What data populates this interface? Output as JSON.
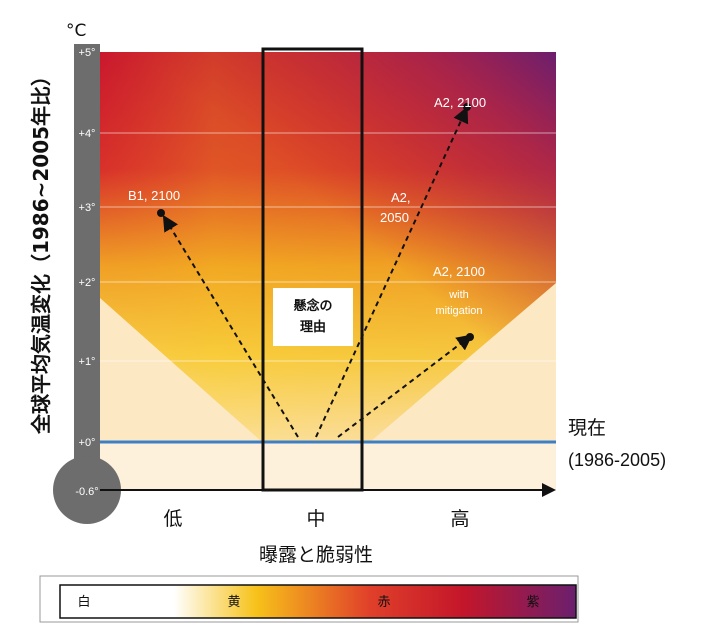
{
  "axis": {
    "unit": "°C",
    "ylabel": "全球平均気温変化（1986~2005年比）",
    "xlabel": "曝露と脆弱性",
    "y_ticks": [
      "+5°",
      "+4°",
      "+3°",
      "+2°",
      "+1°",
      "+0°",
      "-0.6°"
    ],
    "x_categories": [
      "低",
      "中",
      "高"
    ]
  },
  "baseline": {
    "label": "現在",
    "period": "(1986-2005)",
    "color": "#3d7fc4"
  },
  "box_label": {
    "line1": "懸念の",
    "line2": "理由"
  },
  "scenarios": {
    "b1_2100": "B1, 2100",
    "a2_2100": "A2, 2100",
    "a2_2050_line1": "A2,",
    "a2_2050_line2": "2050",
    "a2_mit_line1": "A2, 2100",
    "a2_mit_line2": "with",
    "a2_mit_line3": "mitigation"
  },
  "color_scale": {
    "labels": [
      "白",
      "黄",
      "赤",
      "紫"
    ],
    "colors": [
      "#ffffff",
      "#f7c21a",
      "#c4162a",
      "#6b1f6e"
    ]
  }
}
